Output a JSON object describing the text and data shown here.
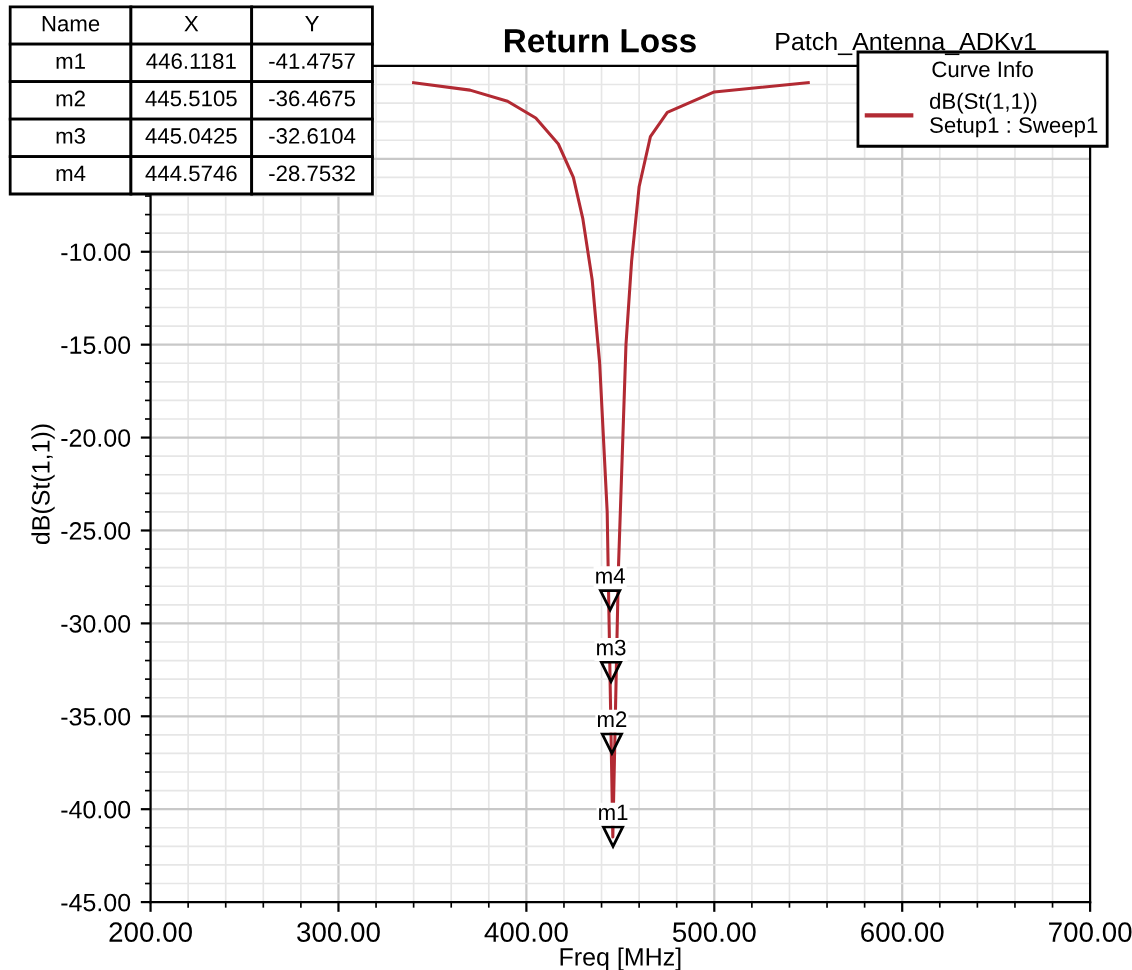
{
  "chart_data": {
    "type": "line",
    "title": "Return Loss",
    "subtitle": "Patch_Antenna_ADKv1",
    "xlabel": "Freq [MHz]",
    "ylabel": "dB(St(1,1))",
    "legend_title": "Curve Info",
    "series": [
      {
        "name": "dB(St(1,1))\nSetup1 : Sweep1",
        "color": "#b22a33",
        "x": [
          340,
          370,
          390,
          405,
          417,
          425,
          430,
          435,
          439,
          443,
          446,
          449,
          453,
          456,
          460,
          466,
          475,
          500,
          550
        ],
        "values": [
          -0.9,
          -1.3,
          -1.9,
          -2.8,
          -4.2,
          -6,
          -8.2,
          -11.5,
          -16,
          -24,
          -41.5,
          -27,
          -15,
          -10.5,
          -6.5,
          -3.8,
          -2.5,
          -1.4,
          -0.9
        ]
      }
    ],
    "annotations": [
      "Name",
      "X",
      "Y",
      "m1",
      "446.1181",
      "-41.4757",
      "m2",
      "445.5105",
      "-36.4675",
      "m3",
      "445.0425",
      "-32.6104",
      "m4",
      "444.5746",
      "-28.7532",
      {
        "text": "m1",
        "x": 446.1181,
        "y": -41.4757
      },
      {
        "text": "m2",
        "x": 445.5105,
        "y": -36.4675
      },
      {
        "text": "m3",
        "x": 445.0425,
        "y": -32.6104
      },
      {
        "text": "m4",
        "x": 444.5746,
        "y": -28.7532
      }
    ],
    "xlim": [
      200,
      700
    ],
    "xticks": [
      {
        "value": 200,
        "label": "200.00"
      },
      {
        "value": 300,
        "label": "300.00"
      },
      {
        "value": 400,
        "label": "400.00"
      },
      {
        "value": 500,
        "label": "500.00"
      },
      {
        "value": 600,
        "label": "600.00"
      },
      {
        "value": 700,
        "label": "700.00"
      }
    ],
    "ylim": [
      -45,
      0
    ],
    "yticks": [
      {
        "value": -45,
        "label": "-45.00"
      },
      {
        "value": -40,
        "label": "-40.00"
      },
      {
        "value": -35,
        "label": "-35.00"
      },
      {
        "value": -30,
        "label": "-30.00"
      },
      {
        "value": -25,
        "label": "-25.00"
      },
      {
        "value": -20,
        "label": "-20.00"
      },
      {
        "value": -15,
        "label": "-15.00"
      },
      {
        "value": -10,
        "label": "-10.00"
      },
      {
        "value": -5,
        "label": null
      },
      {
        "value": 0,
        "label": null
      }
    ],
    "grid": true,
    "legend": "top right",
    "line_style": "solid"
  }
}
